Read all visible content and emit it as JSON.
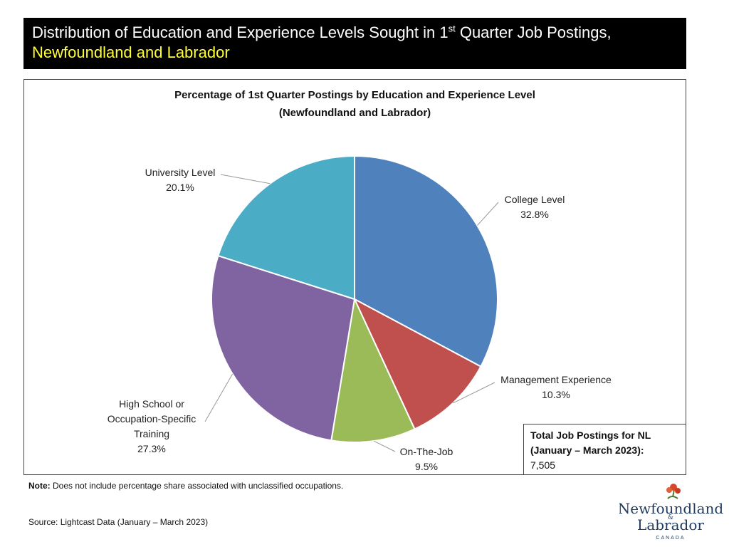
{
  "header": {
    "title_part1": "Distribution of Education and Experience Levels Sought in 1",
    "title_sup": "st",
    "title_part2": " Quarter Job Postings, ",
    "title_highlight": "Newfoundland and Labrador"
  },
  "chart_data": {
    "type": "pie",
    "title": "Percentage of 1st Quarter Postings by Education and Experience Level",
    "subtitle": "(Newfoundland and Labrador)",
    "categories": [
      "College Level",
      "Management Experience",
      "On-The-Job",
      "High School or Occupation-Specific Training",
      "University Level"
    ],
    "values": [
      32.8,
      10.3,
      9.5,
      27.3,
      20.1
    ],
    "value_labels": [
      "32.8%",
      "10.3%",
      "9.5%",
      "27.3%",
      "20.1%"
    ],
    "colors": [
      "#4f81bd",
      "#c0504d",
      "#9bbb59",
      "#8064a2",
      "#4bacc6"
    ]
  },
  "total_box": {
    "title": "Total Job Postings for NL (January – March 2023):",
    "value": "7,505"
  },
  "note": {
    "label": "Note:",
    "text": " Does not include percentage share associated with unclassified occupations."
  },
  "source": "Source: Lightcast Data (January – March 2023)",
  "logo": {
    "line1": "Newfoundland",
    "amp": "&",
    "line2": "Labrador",
    "country": "CANADA"
  }
}
